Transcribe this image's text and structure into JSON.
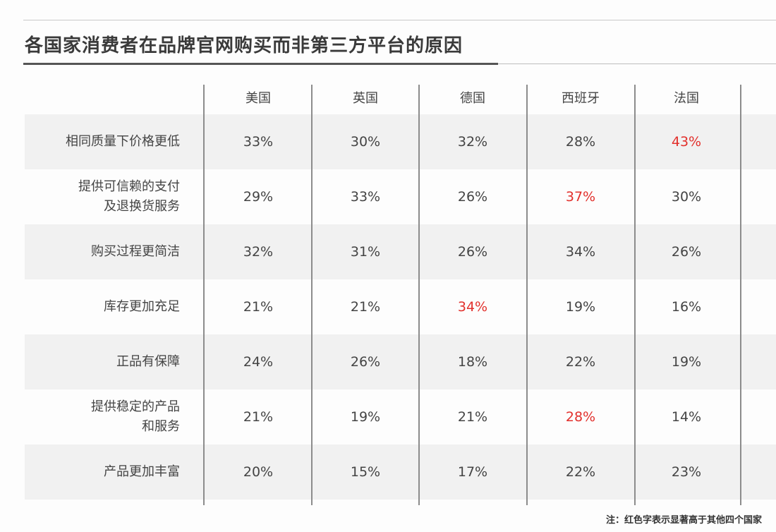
{
  "title": "各国家消费者在品牌官网购买而非第三方平台的原因",
  "footnote": "注：红色字表示显著高于其他四个国家",
  "colors": {
    "highlight": "#e2302c",
    "text": "#444444",
    "shaded_row": "#f1f1f1"
  },
  "chart_data": {
    "type": "table",
    "title": "各国家消费者在品牌官网购买而非第三方平台的原因",
    "columns": [
      "美国",
      "英国",
      "德国",
      "西班牙",
      "法国"
    ],
    "rows": [
      {
        "label_lines": [
          "相同质量下价格更低"
        ],
        "values": [
          "33%",
          "30%",
          "32%",
          "28%",
          "43%"
        ],
        "highlight": [
          false,
          false,
          false,
          false,
          true
        ]
      },
      {
        "label_lines": [
          "提供可信赖的支付",
          "及退换货服务"
        ],
        "values": [
          "29%",
          "33%",
          "26%",
          "37%",
          "30%"
        ],
        "highlight": [
          false,
          false,
          false,
          true,
          false
        ]
      },
      {
        "label_lines": [
          "购买过程更简洁"
        ],
        "values": [
          "32%",
          "31%",
          "26%",
          "34%",
          "26%"
        ],
        "highlight": [
          false,
          false,
          false,
          false,
          false
        ]
      },
      {
        "label_lines": [
          "库存更加充足"
        ],
        "values": [
          "21%",
          "21%",
          "34%",
          "19%",
          "16%"
        ],
        "highlight": [
          false,
          false,
          true,
          false,
          false
        ]
      },
      {
        "label_lines": [
          "正品有保障"
        ],
        "values": [
          "24%",
          "26%",
          "18%",
          "22%",
          "19%"
        ],
        "highlight": [
          false,
          false,
          false,
          false,
          false
        ]
      },
      {
        "label_lines": [
          "提供稳定的产品",
          "和服务"
        ],
        "values": [
          "21%",
          "19%",
          "21%",
          "28%",
          "14%"
        ],
        "highlight": [
          false,
          false,
          false,
          true,
          false
        ]
      },
      {
        "label_lines": [
          "产品更加丰富"
        ],
        "values": [
          "20%",
          "15%",
          "17%",
          "22%",
          "23%"
        ],
        "highlight": [
          false,
          false,
          false,
          false,
          false
        ]
      }
    ]
  }
}
